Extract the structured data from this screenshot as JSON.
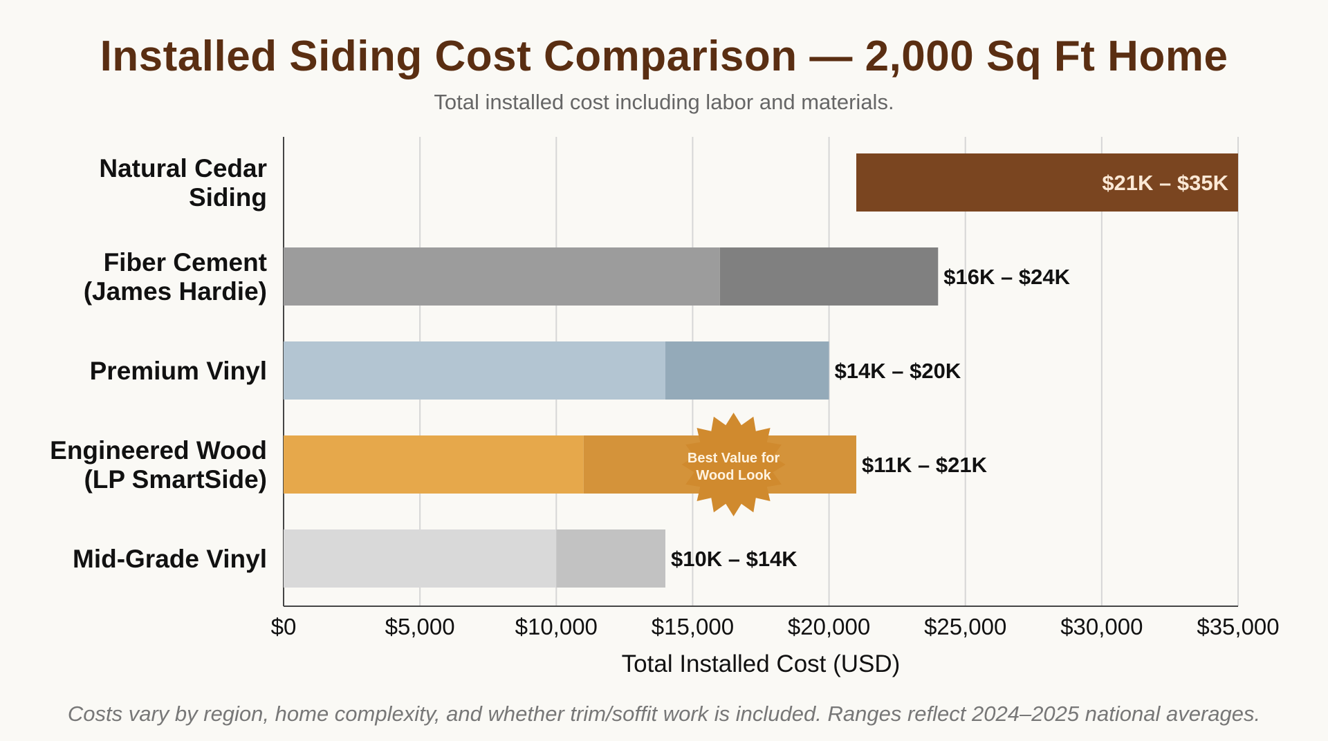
{
  "title": "Installed Siding Cost Comparison — 2,000 Sq Ft Home",
  "subtitle": "Total installed cost including labor and materials.",
  "footnote": "Costs vary by region, home complexity, and whether trim/soffit work is included. Ranges reflect 2024–2025 national averages.",
  "chart_data": {
    "type": "bar",
    "orientation": "horizontal",
    "title": "Installed Siding Cost Comparison — 2,000 Sq Ft Home",
    "subtitle": "Total installed cost including labor and materials.",
    "xlabel": "Total Installed Cost (USD)",
    "xlim": [
      0,
      35000
    ],
    "xticks": [
      0,
      5000,
      10000,
      15000,
      20000,
      25000,
      30000,
      35000
    ],
    "xtick_labels": [
      "$0",
      "$5,000",
      "$10,000",
      "$15,000",
      "$20,000",
      "$25,000",
      "$30,000",
      "$35,000"
    ],
    "grid": "vertical",
    "categories": [
      {
        "label_lines": [
          "Natural Cedar",
          "Siding"
        ],
        "low": 21000,
        "high": 35000,
        "label": "$21K – $35K",
        "floating": true,
        "color_light": "#7a4520",
        "color_dark": "#7a4520",
        "label_inside": true
      },
      {
        "label_lines": [
          "Fiber Cement",
          "(James Hardie)"
        ],
        "low": 16000,
        "high": 24000,
        "label": "$16K – $24K",
        "floating": false,
        "color_light": "#9c9c9c",
        "color_dark": "#808080"
      },
      {
        "label_lines": [
          "Premium Vinyl"
        ],
        "low": 14000,
        "high": 20000,
        "label": "$14K – $20K",
        "floating": false,
        "color_light": "#b3c5d2",
        "color_dark": "#94aab9"
      },
      {
        "label_lines": [
          "Engineered Wood",
          "(LP SmartSide)"
        ],
        "low": 11000,
        "high": 21000,
        "label": "$11K – $21K",
        "floating": false,
        "color_light": "#e6a84b",
        "color_dark": "#d4933a"
      },
      {
        "label_lines": [
          "Mid-Grade Vinyl"
        ],
        "low": 10000,
        "high": 14000,
        "label": "$10K – $14K",
        "floating": false,
        "color_light": "#d9d9d9",
        "color_dark": "#c2c2c2"
      }
    ],
    "annotation": {
      "text_lines": [
        "Best Value for",
        "Wood Look"
      ],
      "category_index": 3,
      "x": 16500,
      "color": "#d08a2e"
    }
  }
}
